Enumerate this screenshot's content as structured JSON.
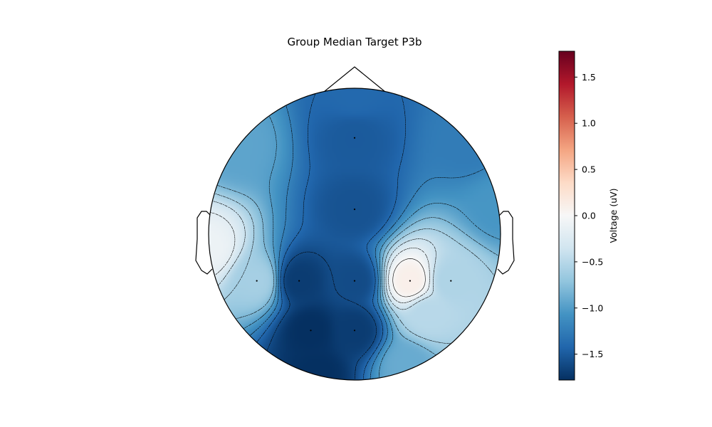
{
  "chart_data": {
    "type": "heatmap",
    "subtype": "eeg-topomap",
    "title": "Group Median Target P3b",
    "colorbar": {
      "label": "Voltage (uV)",
      "colormap": "RdBu_r",
      "vmin": -1.78,
      "vmax": 1.78,
      "ticks": [
        -1.5,
        -1.0,
        -0.5,
        0.0,
        0.5,
        1.0,
        1.5
      ],
      "tick_labels": [
        "−1.5",
        "−1.0",
        "−0.5",
        "0.0",
        "0.5",
        "1.0",
        "1.5"
      ]
    },
    "contour_lines": true,
    "sensors": [
      {
        "x": 0.0,
        "y": 0.66,
        "value": -1.5
      },
      {
        "x": 0.0,
        "y": 0.17,
        "value": -1.55
      },
      {
        "x": -0.67,
        "y": -0.32,
        "value": -0.6
      },
      {
        "x": -0.38,
        "y": -0.32,
        "value": -1.7
      },
      {
        "x": 0.0,
        "y": -0.32,
        "value": -1.6
      },
      {
        "x": 0.38,
        "y": -0.32,
        "value": 0.1
      },
      {
        "x": 0.66,
        "y": -0.32,
        "value": -0.55
      },
      {
        "x": -0.3,
        "y": -0.66,
        "value": -1.78
      },
      {
        "x": 0.0,
        "y": -0.66,
        "value": -1.7
      }
    ],
    "extrema": [
      {
        "x": -1.0,
        "y": -0.1,
        "value": -0.1
      },
      {
        "x": 0.5,
        "y": -0.55,
        "value": -0.5
      },
      {
        "x": 0.0,
        "y": 0.95,
        "value": -1.4
      },
      {
        "x": 1.0,
        "y": 0.2,
        "value": -1.05
      },
      {
        "x": -0.8,
        "y": 0.62,
        "value": -0.95
      },
      {
        "x": 0.78,
        "y": 0.62,
        "value": -1.25
      },
      {
        "x": -0.25,
        "y": -0.96,
        "value": -1.78
      },
      {
        "x": 0.35,
        "y": -0.9,
        "value": -0.9
      }
    ]
  }
}
